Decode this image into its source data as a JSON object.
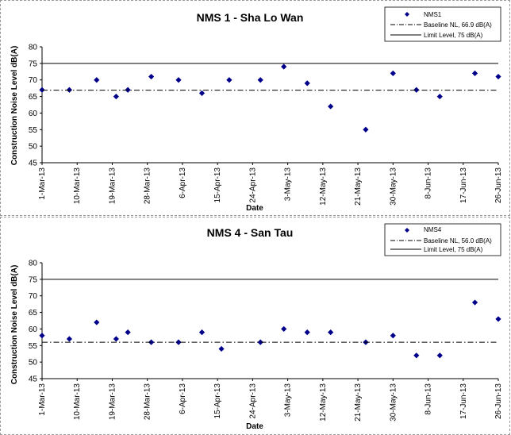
{
  "chart_data": [
    {
      "type": "scatter",
      "title": "NMS 1 - Sha Lo Wan",
      "xlabel": "Date",
      "ylabel": "Construction Noise Level  dB(A)",
      "ylim": [
        45,
        80
      ],
      "yticks": [
        "45",
        "50",
        "55",
        "60",
        "65",
        "70",
        "75",
        "80"
      ],
      "xlim": [
        "2013-03-01",
        "2013-06-26"
      ],
      "xticks": [
        "1-Mar-13",
        "10-Mar-13",
        "19-Mar-13",
        "28-Mar-13",
        "6-Apr-13",
        "15-Apr-13",
        "24-Apr-13",
        "3-May-13",
        "12-May-13",
        "21-May-13",
        "30-May-13",
        "8-Jun-13",
        "17-Jun-13",
        "26-Jun-13"
      ],
      "grid": false,
      "legend": {
        "position": "top-right",
        "entries": [
          "NMS1",
          "Baseline NL, 66.9 dB(A)",
          "Limit Level, 75 dB(A)"
        ]
      },
      "series": [
        {
          "name": "NMS1",
          "color": "#00008b",
          "x": [
            "2013-03-01",
            "2013-03-08",
            "2013-03-15",
            "2013-03-20",
            "2013-03-23",
            "2013-03-29",
            "2013-04-05",
            "2013-04-11",
            "2013-04-18",
            "2013-04-26",
            "2013-05-02",
            "2013-05-08",
            "2013-05-14",
            "2013-05-23",
            "2013-05-30",
            "2013-06-05",
            "2013-06-11",
            "2013-06-20",
            "2013-06-26"
          ],
          "values": [
            67,
            67,
            70,
            65,
            67,
            71,
            70,
            66,
            70,
            70,
            74,
            69,
            62,
            55,
            72,
            67,
            65,
            72,
            71
          ]
        },
        {
          "name": "Baseline NL, 66.9 dB(A)",
          "y": 66.9,
          "style": "dash-dot"
        },
        {
          "name": "Limit Level, 75 dB(A)",
          "y": 75,
          "style": "solid"
        }
      ]
    },
    {
      "type": "scatter",
      "title": "NMS 4 - San Tau",
      "xlabel": "Date",
      "ylabel": "Construction Noise Level  dB(A)",
      "ylim": [
        45,
        80
      ],
      "yticks": [
        "45",
        "50",
        "55",
        "60",
        "65",
        "70",
        "75",
        "80"
      ],
      "xlim": [
        "2013-03-01",
        "2013-06-26"
      ],
      "xticks": [
        "1-Mar-13",
        "10-Mar-13",
        "19-Mar-13",
        "28-Mar-13",
        "6-Apr-13",
        "15-Apr-13",
        "24-Apr-13",
        "3-May-13",
        "12-May-13",
        "21-May-13",
        "30-May-13",
        "8-Jun-13",
        "17-Jun-13",
        "26-Jun-13"
      ],
      "grid": false,
      "legend": {
        "position": "top-right",
        "entries": [
          "NMS4",
          "Baseline NL, 56.0 dB(A)",
          "Limit Level, 75 dB(A)"
        ]
      },
      "series": [
        {
          "name": "NMS4",
          "color": "#00008b",
          "x": [
            "2013-03-01",
            "2013-03-08",
            "2013-03-15",
            "2013-03-20",
            "2013-03-23",
            "2013-03-29",
            "2013-04-05",
            "2013-04-11",
            "2013-04-16",
            "2013-04-26",
            "2013-05-02",
            "2013-05-08",
            "2013-05-14",
            "2013-05-23",
            "2013-05-30",
            "2013-06-05",
            "2013-06-11",
            "2013-06-20",
            "2013-06-26"
          ],
          "values": [
            58,
            57,
            62,
            57,
            59,
            56,
            56,
            59,
            54,
            56,
            60,
            59,
            59,
            56,
            58,
            52,
            52,
            68,
            63
          ]
        },
        {
          "name": "Baseline NL, 56.0 dB(A)",
          "y": 56,
          "style": "dash-dot"
        },
        {
          "name": "Limit Level, 75 dB(A)",
          "y": 75,
          "style": "solid"
        }
      ]
    }
  ]
}
